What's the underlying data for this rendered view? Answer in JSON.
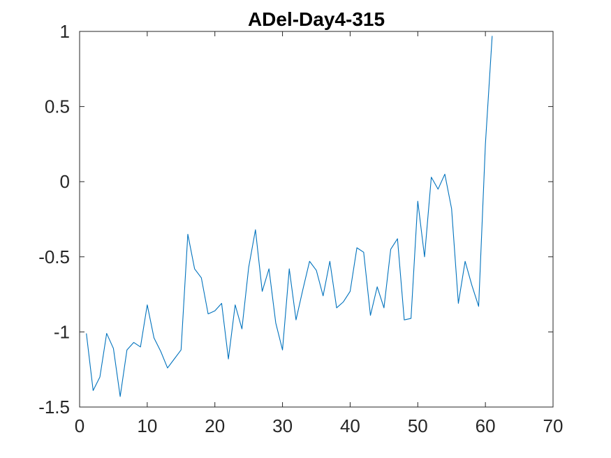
{
  "chart_data": {
    "type": "line",
    "title": "ADel-Day4-315",
    "xlabel": "",
    "ylabel": "",
    "xlim": [
      0,
      70
    ],
    "ylim": [
      -1.5,
      1
    ],
    "xticks": [
      0,
      10,
      20,
      30,
      40,
      50,
      60,
      70
    ],
    "yticks": [
      -1.5,
      -1,
      -0.5,
      0,
      0.5,
      1
    ],
    "xtick_labels": [
      "0",
      "10",
      "20",
      "30",
      "40",
      "50",
      "60",
      "70"
    ],
    "ytick_labels": [
      "-1.5",
      "-1",
      "-0.5",
      "0",
      "0.5",
      "1"
    ],
    "grid": false,
    "series": [
      {
        "color": "#0072bd",
        "x": [
          1,
          2,
          3,
          4,
          5,
          6,
          7,
          8,
          9,
          10,
          11,
          12,
          13,
          14,
          15,
          16,
          17,
          18,
          19,
          20,
          21,
          22,
          23,
          24,
          25,
          26,
          27,
          28,
          29,
          30,
          31,
          32,
          33,
          34,
          35,
          36,
          37,
          38,
          39,
          40,
          41,
          42,
          43,
          44,
          45,
          46,
          47,
          48,
          49,
          50,
          51,
          52,
          53,
          54,
          55,
          56,
          57,
          58,
          59,
          60,
          61
        ],
        "y": [
          -1.01,
          -1.39,
          -1.3,
          -1.01,
          -1.11,
          -1.43,
          -1.12,
          -1.07,
          -1.1,
          -0.82,
          -1.04,
          -1.13,
          -1.24,
          -1.18,
          -1.12,
          -0.35,
          -0.58,
          -0.64,
          -0.88,
          -0.86,
          -0.81,
          -1.18,
          -0.82,
          -0.98,
          -0.57,
          -0.32,
          -0.73,
          -0.58,
          -0.94,
          -1.12,
          -0.58,
          -0.92,
          -0.72,
          -0.53,
          -0.59,
          -0.76,
          -0.53,
          -0.84,
          -0.8,
          -0.73,
          -0.44,
          -0.47,
          -0.89,
          -0.7,
          -0.84,
          -0.45,
          -0.38,
          -0.92,
          -0.91,
          -0.13,
          -0.5,
          0.03,
          -0.05,
          0.05,
          -0.18,
          -0.81,
          -0.53,
          -0.69,
          -0.83,
          0.25,
          0.97
        ]
      }
    ]
  }
}
